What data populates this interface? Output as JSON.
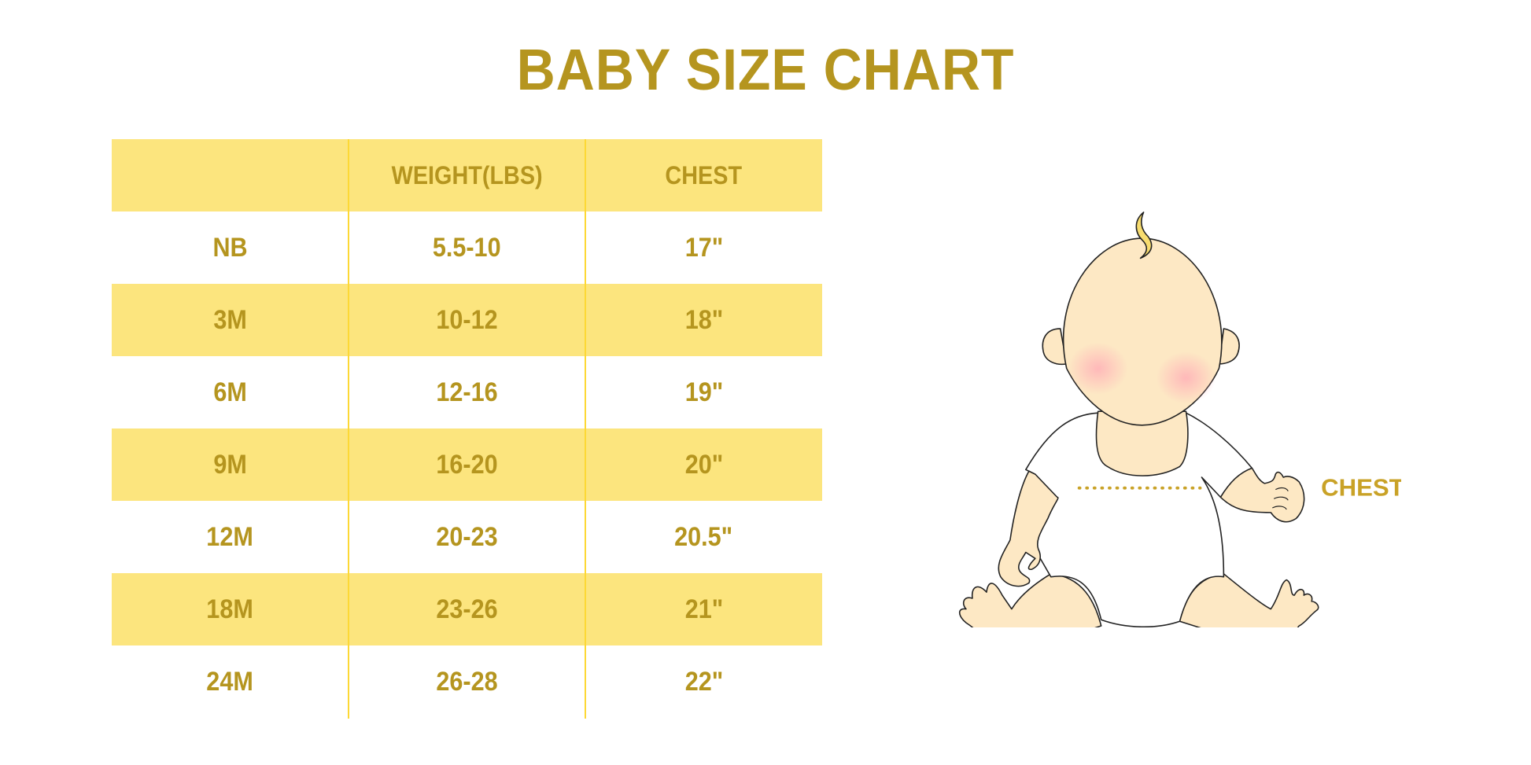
{
  "title": "BABY SIZE CHART",
  "colors": {
    "text": "#b5951f",
    "band": "#fce57e",
    "divider": "#fdd835",
    "skin": "#fde8c4",
    "hair": "#f7dc6f"
  },
  "table": {
    "headers": [
      "",
      "WEIGHT(LBS)",
      "CHEST"
    ],
    "rows": [
      [
        "NB",
        "5.5-10",
        "17\""
      ],
      [
        "3M",
        "10-12",
        "18\""
      ],
      [
        "6M",
        "12-16",
        "19\""
      ],
      [
        "9M",
        "16-20",
        "20\""
      ],
      [
        "12M",
        "20-23",
        "20.5\""
      ],
      [
        "18M",
        "23-26",
        "21\""
      ],
      [
        "24M",
        "26-28",
        "22\""
      ]
    ]
  },
  "illustration": {
    "chest_label": "CHEST"
  }
}
